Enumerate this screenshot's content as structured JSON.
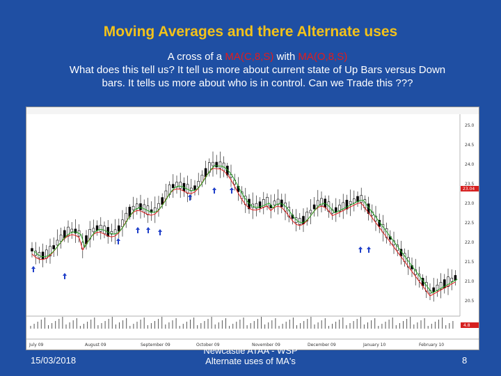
{
  "slide": {
    "title": "Moving Averages and there Alternate uses",
    "subtitle_part1": "A cross of a ",
    "ma_close": "MA(C,8,S)",
    "subtitle_part2": " with ",
    "ma_open": "MA(O,8,S)",
    "subtitle_line2": "What does this tell us? It tell us more about current state of Up Bars versus Down bars. It tells us more about who is in control. Can we Trade this ???",
    "footer_date": "15/03/2018",
    "footer_center_line1": "Newcastle ATAA - WSP",
    "footer_center_line2": "Alternate uses of MA's",
    "page_number": "8"
  },
  "colors": {
    "background": "#1f4fa3",
    "title": "#f3c21a",
    "highlight_red": "#e21c1c",
    "ma_close_line": "#e21c1c",
    "ma_open_line": "#22aa22",
    "arrow": "#1f3fc9",
    "candle": "#000000"
  },
  "chart_data": {
    "type": "candlestick",
    "x_labels": [
      "July 09",
      "August 09",
      "September 09",
      "October 09",
      "November 09",
      "December 09",
      "January 10",
      "February 10"
    ],
    "price_ticks": [
      "25.0",
      "24.5",
      "24.0",
      "23.5",
      "23.0",
      "22.5",
      "22.0",
      "21.5",
      "21.0",
      "20.5"
    ],
    "highlight_price": "23.04",
    "indicator_value": "4.8"
  }
}
